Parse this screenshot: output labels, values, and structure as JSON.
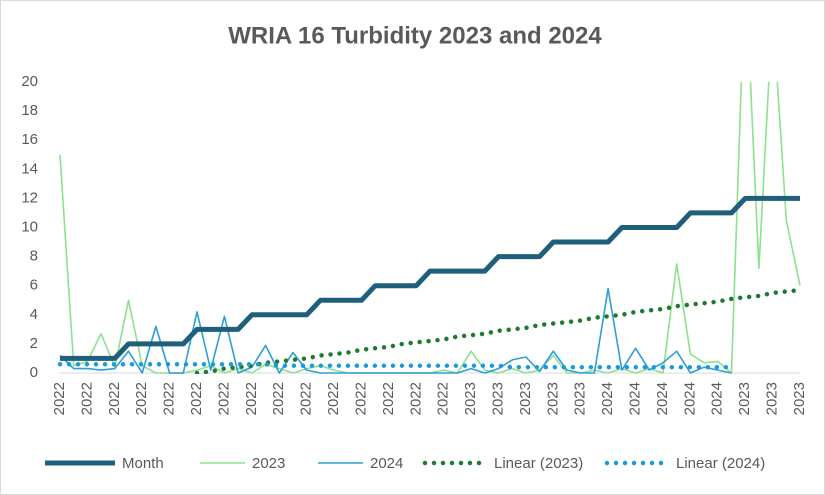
{
  "chart_data": {
    "type": "line",
    "title": "WRIA 16 Turbidity 2023 and 2024",
    "categories": [
      "2022",
      null,
      "2022",
      null,
      "2022",
      null,
      "2022",
      null,
      "2022",
      null,
      "2022",
      null,
      "2022",
      null,
      "2022",
      null,
      "2022",
      null,
      "2022",
      null,
      "2022",
      null,
      "2022",
      null,
      "2022",
      null,
      "2022",
      null,
      "2022",
      null,
      "2023",
      null,
      "2023",
      null,
      "2023",
      null,
      "2023",
      null,
      "2023",
      null,
      "2024",
      null,
      "2024",
      null,
      "2024",
      null,
      "2024",
      null,
      "2024",
      null,
      "2023",
      null,
      "2023",
      null,
      "2023"
    ],
    "series": [
      {
        "name": "Month",
        "color": "#1f5f7c",
        "line_style": "thick",
        "values": [
          1,
          1,
          1,
          1,
          1,
          2,
          2,
          2,
          2,
          2,
          3,
          3,
          3,
          3,
          4,
          4,
          4,
          4,
          4,
          5,
          5,
          5,
          5,
          6,
          6,
          6,
          6,
          7,
          7,
          7,
          7,
          7,
          8,
          8,
          8,
          8,
          9,
          9,
          9,
          9,
          9,
          10,
          10,
          10,
          10,
          10,
          11,
          11,
          11,
          11,
          12,
          12,
          12,
          12,
          12
        ]
      },
      {
        "name": "2023",
        "color": "#8fe08f",
        "line_style": "solid",
        "values": [
          15,
          0.5,
          0.8,
          2.7,
          0.4,
          5,
          0.5,
          0,
          0,
          0,
          0.2,
          0.5,
          0,
          0.3,
          0,
          0.6,
          0.3,
          0,
          0.3,
          0.5,
          0.2,
          0,
          0,
          0,
          0,
          0,
          0,
          0,
          0.2,
          0,
          1.5,
          0.2,
          0,
          0.3,
          0,
          0.2,
          1.2,
          0,
          0,
          0.2,
          0,
          0.3,
          0,
          0.3,
          0,
          7.5,
          1.3,
          0.7,
          0.8,
          0,
          28,
          7.2,
          25,
          10.5,
          6
        ]
      },
      {
        "name": "2024",
        "color": "#2e9fd6",
        "line_style": "solid",
        "values": [
          1.2,
          0.3,
          0.3,
          0.2,
          0.3,
          1.5,
          0,
          3.2,
          0,
          0,
          4.2,
          0.2,
          3.9,
          0,
          0.4,
          1.9,
          0,
          1.4,
          0.2,
          0,
          0,
          0,
          0,
          0,
          0,
          0,
          0,
          0,
          0,
          0,
          0.3,
          0,
          0.3,
          0.9,
          1.1,
          0.1,
          1.5,
          0.2,
          0,
          0,
          5.8,
          0.2,
          1.7,
          0.2,
          0.7,
          1.5,
          0,
          0.4,
          0.2,
          0,
          null,
          null,
          null,
          null,
          null
        ]
      },
      {
        "name": "Linear (2023)",
        "color": "#1e7a2e",
        "line_style": "dotted",
        "values": [
          null,
          null,
          null,
          null,
          null,
          null,
          null,
          null,
          null,
          null,
          0.0,
          0.1,
          0.3,
          0.4,
          0.5,
          0.7,
          0.8,
          0.9,
          1.0,
          1.2,
          1.3,
          1.4,
          1.6,
          1.7,
          1.8,
          2.0,
          2.1,
          2.2,
          2.3,
          2.5,
          2.6,
          2.7,
          2.9,
          3.0,
          3.1,
          3.3,
          3.4,
          3.5,
          3.6,
          3.8,
          3.9,
          4.0,
          4.2,
          4.3,
          4.4,
          4.6,
          4.7,
          4.8,
          4.9,
          5.1,
          5.2,
          5.3,
          5.5,
          5.6,
          5.7
        ]
      },
      {
        "name": "Linear (2024)",
        "color": "#1a9bd7",
        "line_style": "dotted",
        "values": [
          0.6,
          0.6,
          0.6,
          0.6,
          0.6,
          0.6,
          0.6,
          0.6,
          0.6,
          0.6,
          0.6,
          0.6,
          0.6,
          0.6,
          0.6,
          0.6,
          0.5,
          0.5,
          0.5,
          0.5,
          0.5,
          0.5,
          0.5,
          0.5,
          0.5,
          0.5,
          0.5,
          0.5,
          0.5,
          0.5,
          0.5,
          0.5,
          0.5,
          0.4,
          0.4,
          0.4,
          0.4,
          0.4,
          0.4,
          0.4,
          0.4,
          0.4,
          0.4,
          0.4,
          0.4,
          0.4,
          0.4,
          0.4,
          0.4,
          0.4,
          null,
          null,
          null,
          null,
          null
        ]
      }
    ],
    "ylim": [
      0,
      20
    ],
    "yticks": [
      0,
      2,
      4,
      6,
      8,
      10,
      12,
      14,
      16,
      18,
      20
    ],
    "grid": false,
    "legend": "bottom"
  }
}
